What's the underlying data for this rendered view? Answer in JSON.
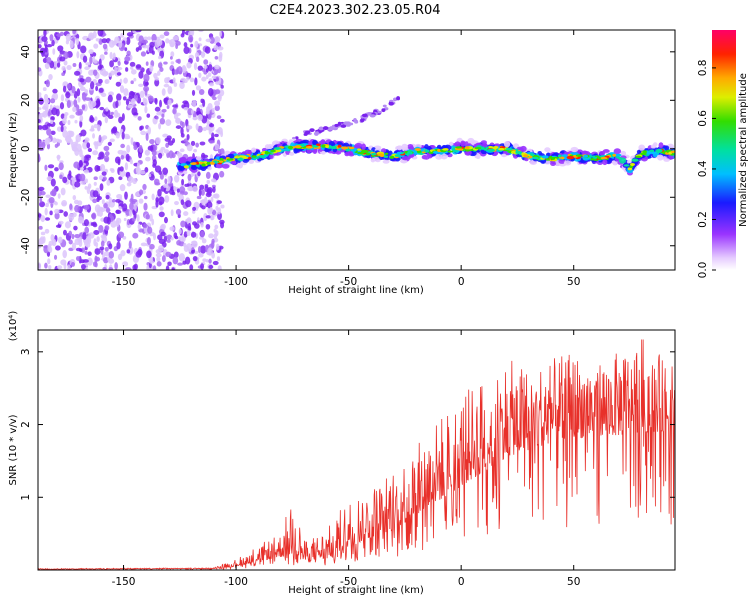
{
  "title": "C2E4.2023.302.23.05.R04",
  "chart_data": [
    {
      "type": "heatmap",
      "name": "spectrogram",
      "xlabel": "Height of straight line (km)",
      "ylabel": "Frequency (Hz)",
      "xlim": [
        -188,
        95
      ],
      "ylim": [
        -50,
        49
      ],
      "xticks": [
        -150,
        -100,
        -50,
        0,
        50
      ],
      "yticks": [
        -40,
        -20,
        0,
        20,
        40
      ],
      "noise_region_x": [
        -188,
        -112
      ],
      "signal_track": {
        "x": [
          -125,
          -112,
          -100,
          -90,
          -80,
          -70,
          -60,
          -50,
          -40,
          -30,
          -20,
          -10,
          0,
          10,
          20,
          30,
          40,
          50,
          60,
          70,
          75,
          80,
          90,
          95
        ],
        "freq_hz": [
          -7,
          -6,
          -4,
          -3,
          0,
          1,
          1,
          0,
          -2,
          -3,
          -1,
          -1,
          0,
          0,
          0,
          -3,
          -4,
          -3,
          -4,
          -3,
          -8,
          -2,
          -1,
          -2
        ]
      },
      "faint_branch": {
        "x": [
          -75,
          -60,
          -45,
          -35,
          -28
        ],
        "freq_hz": [
          5,
          8,
          12,
          16,
          21
        ]
      },
      "colorbar": {
        "label": "Normalized spectral amplitude",
        "ticks": [
          "0.0",
          "0.2",
          "0.4",
          "0.6",
          "0.8"
        ],
        "range": [
          0,
          0.95
        ]
      }
    },
    {
      "type": "line",
      "name": "snr",
      "xlabel": "Height of straight line (km)",
      "ylabel": "SNR (10 * v/v)",
      "y_multiplier": "(x10⁴)",
      "xlim": [
        -188,
        95
      ],
      "ylim": [
        0,
        3.3
      ],
      "xticks": [
        -150,
        -100,
        -50,
        0,
        50
      ],
      "yticks": [
        1,
        2,
        3
      ],
      "series_color": "#e8302a",
      "envelope": {
        "x": [
          -188,
          -110,
          -100,
          -90,
          -80,
          -75,
          -70,
          -60,
          -50,
          -40,
          -30,
          -20,
          -10,
          0,
          10,
          20,
          30,
          40,
          50,
          60,
          70,
          80,
          90,
          95
        ],
        "base": [
          0.01,
          0.02,
          0.05,
          0.12,
          0.18,
          0.2,
          0.12,
          0.15,
          0.3,
          0.45,
          0.55,
          0.75,
          0.95,
          1.15,
          1.35,
          1.55,
          1.65,
          1.75,
          1.8,
          1.85,
          1.85,
          1.9,
          1.9,
          1.9
        ],
        "peak": [
          0.02,
          0.03,
          0.15,
          0.35,
          0.5,
          1.15,
          0.4,
          0.55,
          1.0,
          1.15,
          1.4,
          1.7,
          2.1,
          2.4,
          2.7,
          2.9,
          2.8,
          2.9,
          3.0,
          2.9,
          3.0,
          3.25,
          2.9,
          2.8
        ]
      }
    }
  ]
}
